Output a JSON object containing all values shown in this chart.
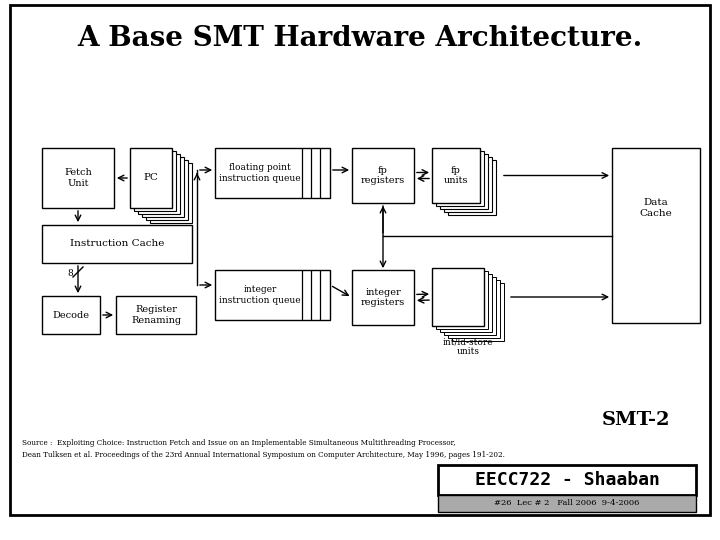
{
  "title": "A Base SMT Hardware Architecture.",
  "title_fontsize": 20,
  "smt_label": "SMT-2",
  "source_line1": "Source :  Exploiting Choice: Instruction Fetch and Issue on an Implementable Simultaneous Multithreading Processor,",
  "source_line2": "Dean Tulksen et al. Proceedings of the 23rd Annual International Symposium on Computer Architecture, May 1996, pages 191-202.",
  "footer_box_text": "EECC722 - Shaaban",
  "footer_sub_text": "#26  Lec # 2   Fall 2006  9-4-2006",
  "bg_color": "#ffffff"
}
